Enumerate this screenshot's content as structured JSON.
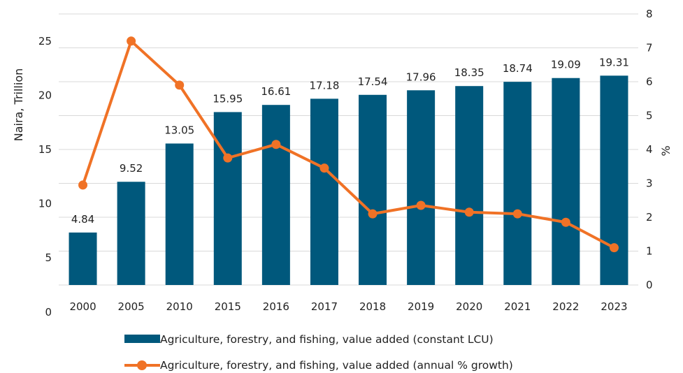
{
  "chart_data": {
    "type": "bar",
    "categories": [
      "2000",
      "2005",
      "2010",
      "2015",
      "2016",
      "2017",
      "2018",
      "2019",
      "2020",
      "2021",
      "2022",
      "2023"
    ],
    "series": [
      {
        "name": "Agriculture, forestry, and fishing, value added (constant LCU)",
        "type": "bar",
        "axis": "left",
        "color": "#00587c",
        "values": [
          4.84,
          9.52,
          13.05,
          15.95,
          16.61,
          17.18,
          17.54,
          17.96,
          18.35,
          18.74,
          19.09,
          19.31
        ],
        "labels": [
          "4.84",
          "9.52",
          "13.05",
          "15.95",
          "16.61",
          "17.18",
          "17.54",
          "17.96",
          "18.35",
          "18.74",
          "19.09",
          "19.31"
        ]
      },
      {
        "name": "Agriculture, forestry, and fishing, value added (annual % growth)",
        "type": "line",
        "axis": "right",
        "color": "#f07226",
        "values": [
          2.95,
          7.2,
          5.9,
          3.75,
          4.15,
          3.45,
          2.1,
          2.35,
          2.15,
          2.1,
          1.85,
          1.1
        ]
      }
    ],
    "ylabel": "Naira, Trillion",
    "y2label": "%",
    "ylim": [
      0,
      25
    ],
    "y2lim": [
      0,
      8
    ],
    "yticks": [
      "0",
      "5",
      "10",
      "15",
      "20",
      "25"
    ],
    "y2ticks": [
      "0",
      "1",
      "2",
      "3",
      "4",
      "5",
      "6",
      "7",
      "8"
    ],
    "grid": true,
    "legend": "bottom"
  }
}
